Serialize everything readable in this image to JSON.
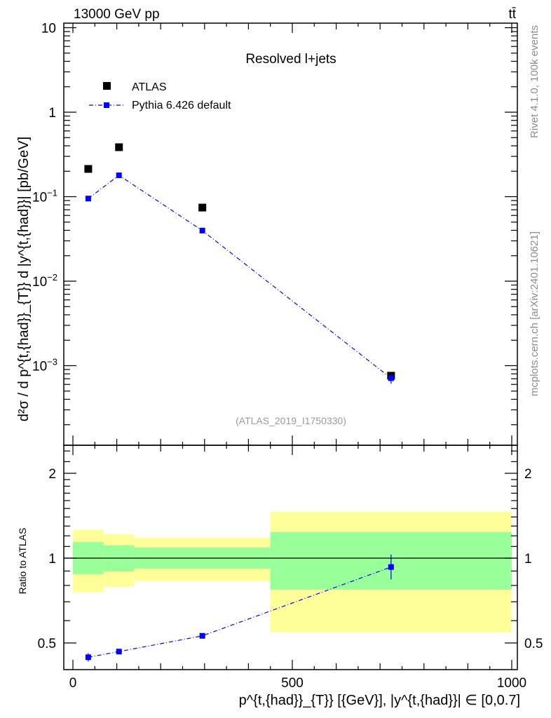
{
  "header": {
    "energy_label": "13000 GeV pp",
    "process_label": "tt̄",
    "panel_title": "Resolved l+jets",
    "analysis_id": "(ATLAS_2019_I1750330)",
    "side_top": "Rivet 4.1.0,  100k events",
    "side_bottom": "mcplots.cern.ch [arXiv:2401.10621]"
  },
  "colors": {
    "data": "#000000",
    "mc": "#0000ff",
    "band_inner": "#99ff99",
    "band_outer": "#ffff99",
    "side_text": "#8c8c8c"
  },
  "chart_data": [
    {
      "type": "scatter",
      "title": "Resolved l+jets",
      "xlabel": "p^{t,{had}}_{T}} [{GeV}], |y^{t,{had}}| ∈ [0,0.7]",
      "ylabel": "d²σ / d p^{t,{had}}_{T}} d |y^{t,{had}}| [pb/GeV]",
      "yscale": "log",
      "xlim": [
        -20,
        1010
      ],
      "ylim": [
        0.00012,
        11
      ],
      "x_ticks": [
        "0",
        "500",
        "1000"
      ],
      "y_ticks": [
        {
          "value": 10,
          "base": "10",
          "exp": ""
        },
        {
          "value": 1,
          "base": "1",
          "exp": ""
        },
        {
          "value": 0.1,
          "base": "10",
          "exp": "−1"
        },
        {
          "value": 0.01,
          "base": "10",
          "exp": "−2"
        },
        {
          "value": 0.001,
          "base": "10",
          "exp": "−3"
        }
      ],
      "bin_edges": [
        0,
        70,
        140,
        450,
        1000
      ],
      "legend_position": "top-left",
      "series": [
        {
          "name": "ATLAS",
          "style": "marker",
          "x": [
            35,
            105,
            295,
            725
          ],
          "y": [
            0.213,
            0.385,
            0.0743,
            0.00076
          ]
        },
        {
          "name": "Pythia 6.426 default",
          "style": "dash-dot line with markers",
          "x": [
            35,
            105,
            295,
            725
          ],
          "y": [
            0.095,
            0.179,
            0.0397,
            0.00071
          ],
          "y_err_low": [
            0.093,
            0.177,
            0.0393,
            0.00061
          ],
          "y_err_high": [
            0.097,
            0.181,
            0.0401,
            0.00078
          ]
        }
      ]
    },
    {
      "type": "scatter",
      "ylabel": "Ratio to ATLAS",
      "yscale": "log",
      "ylim": [
        0.4,
        2.44
      ],
      "y_ticks": [
        "0.5",
        "1",
        "2"
      ],
      "bands": {
        "bin_edges": [
          0,
          70,
          140,
          450,
          1000
        ],
        "inner_low": [
          0.877,
          0.897,
          0.918,
          0.773
        ],
        "inner_high": [
          1.14,
          1.11,
          1.09,
          1.236
        ],
        "outer_low": [
          0.755,
          0.79,
          0.828,
          0.545
        ],
        "outer_high": [
          1.26,
          1.215,
          1.18,
          1.46
        ]
      },
      "series": [
        {
          "name": "Pythia 6.426 default / ATLAS",
          "x": [
            35,
            105,
            295,
            725
          ],
          "y": [
            0.445,
            0.466,
            0.53,
            0.93
          ],
          "y_err_low": [
            0.43,
            0.458,
            0.522,
            0.84
          ],
          "y_err_high": [
            0.46,
            0.474,
            0.538,
            1.03
          ]
        }
      ]
    }
  ]
}
